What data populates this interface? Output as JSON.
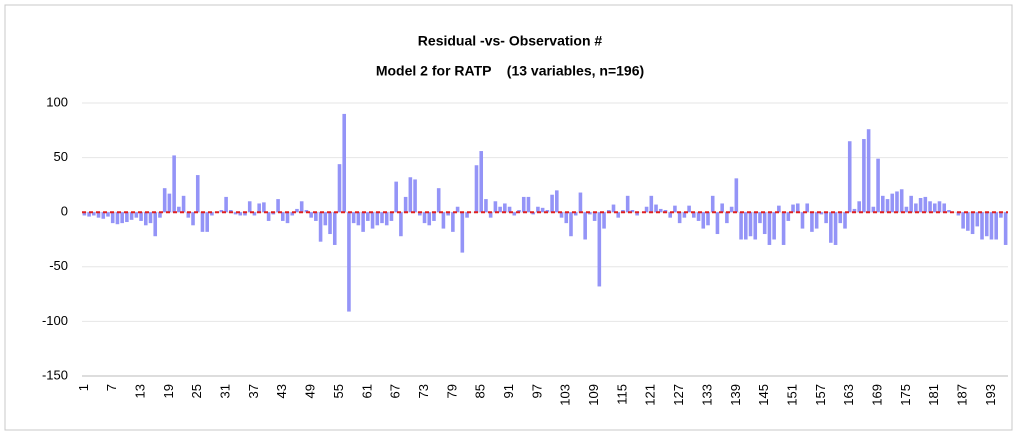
{
  "chart_data": {
    "type": "bar",
    "title": "Residual -vs- Observation #",
    "subtitle": "Model 2 for RATP    (13 variables, n=196)",
    "categories": [
      "1",
      null,
      null,
      null,
      null,
      null,
      "7",
      null,
      null,
      null,
      null,
      null,
      "13",
      null,
      null,
      null,
      null,
      null,
      "19",
      null,
      null,
      null,
      null,
      null,
      "25",
      null,
      null,
      null,
      null,
      null,
      "31",
      null,
      null,
      null,
      null,
      null,
      "37",
      null,
      null,
      null,
      null,
      null,
      "43",
      null,
      null,
      null,
      null,
      null,
      "49",
      null,
      null,
      null,
      null,
      null,
      "55",
      null,
      null,
      null,
      null,
      null,
      "61",
      null,
      null,
      null,
      null,
      null,
      "67",
      null,
      null,
      null,
      null,
      null,
      "73",
      null,
      null,
      null,
      null,
      null,
      "79",
      null,
      null,
      null,
      null,
      null,
      "85",
      null,
      null,
      null,
      null,
      null,
      "91",
      null,
      null,
      null,
      null,
      null,
      "97",
      null,
      null,
      null,
      null,
      null,
      "103",
      null,
      null,
      null,
      null,
      null,
      "109",
      null,
      null,
      null,
      null,
      null,
      "115",
      null,
      null,
      null,
      null,
      null,
      "121",
      null,
      null,
      null,
      null,
      null,
      "127",
      null,
      null,
      null,
      null,
      null,
      "133",
      null,
      null,
      null,
      null,
      null,
      "139",
      null,
      null,
      null,
      null,
      null,
      "145",
      null,
      null,
      null,
      null,
      null,
      "151",
      null,
      null,
      null,
      null,
      null,
      "157",
      null,
      null,
      null,
      null,
      null,
      "163",
      null,
      null,
      null,
      null,
      null,
      "169",
      null,
      null,
      null,
      null,
      null,
      "175",
      null,
      null,
      null,
      null,
      null,
      "181",
      null,
      null,
      null,
      null,
      null,
      "187",
      null,
      null,
      null,
      null,
      null,
      "193",
      null,
      null,
      null
    ],
    "values": [
      -3,
      -4,
      -3,
      -5,
      -6,
      -4,
      -10,
      -11,
      -10,
      -9,
      -7,
      -5,
      -8,
      -12,
      -10,
      -22,
      -5,
      22,
      17,
      52,
      5,
      15,
      -5,
      -12,
      34,
      -18,
      -18,
      -3,
      0,
      2,
      14,
      2,
      -2,
      -3,
      -3,
      10,
      -3,
      8,
      9,
      -8,
      -2,
      12,
      -8,
      -10,
      -3,
      3,
      10,
      2,
      -5,
      -8,
      -27,
      -12,
      -20,
      -30,
      44,
      90,
      -91,
      -10,
      -12,
      -18,
      -8,
      -15,
      -12,
      -10,
      -12,
      -8,
      28,
      -22,
      14,
      32,
      30,
      -3,
      -10,
      -12,
      -8,
      22,
      -15,
      -3,
      -18,
      5,
      -37,
      -5,
      0,
      43,
      56,
      12,
      -5,
      10,
      5,
      8,
      5,
      -3,
      2,
      14,
      14,
      -2,
      5,
      4,
      2,
      16,
      20,
      -5,
      -10,
      -22,
      -3,
      18,
      -25,
      -2,
      -8,
      -68,
      -15,
      2,
      7,
      -5,
      2,
      15,
      2,
      -3,
      0,
      5,
      15,
      7,
      3,
      2,
      -5,
      6,
      -10,
      -5,
      6,
      -5,
      -8,
      -15,
      -12,
      15,
      -20,
      8,
      -10,
      5,
      31,
      -25,
      -25,
      -22,
      -25,
      -10,
      -20,
      -30,
      -25,
      6,
      -30,
      -8,
      7,
      8,
      -15,
      8,
      -18,
      -15,
      -2,
      -10,
      -28,
      -30,
      -10,
      -15,
      65,
      3,
      10,
      67,
      76,
      5,
      49,
      15,
      12,
      17,
      19,
      21,
      5,
      15,
      8,
      13,
      14,
      10,
      8,
      10,
      8,
      2,
      0,
      -3,
      -15,
      -17,
      -20,
      -13,
      -25,
      -22,
      -25,
      -25,
      -5,
      -30
    ],
    "color": "#9494f7",
    "ylim": [
      -150,
      100
    ],
    "yticks": [
      -150,
      -100,
      -50,
      0,
      50,
      100
    ],
    "grid": true,
    "hline": {
      "value": 0,
      "color": "#e02020"
    }
  }
}
